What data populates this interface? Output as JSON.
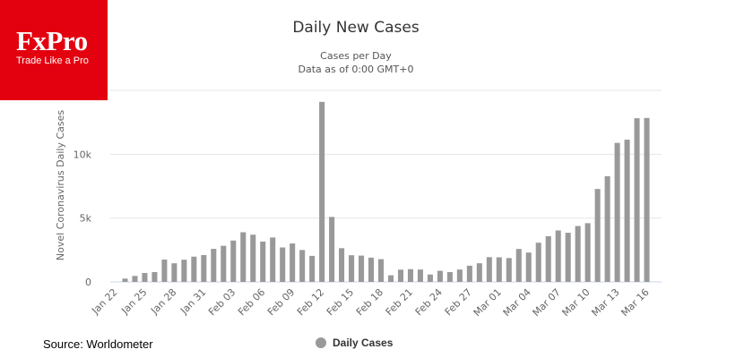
{
  "logo": {
    "name": "FxPro",
    "tagline": "Trade Like a Pro"
  },
  "source_note": "Source: Worldometer",
  "colors": {
    "brand": "#e3000f",
    "bar": "#999999",
    "grid": "#e6e6e6"
  },
  "chart_data": {
    "type": "bar",
    "title": "Daily New Cases",
    "subtitle": [
      "Cases per Day",
      "Data as of 0:00 GMT+0"
    ],
    "xlabel": "",
    "ylabel": "Novel Coronavirus Daily Cases",
    "ylim": [
      0,
      15000
    ],
    "y_ticks": [
      0,
      5000,
      10000
    ],
    "y_tick_labels": [
      "0",
      "5k",
      "10k"
    ],
    "grid": true,
    "legend": {
      "position": "bottom-center"
    },
    "categories": [
      "Jan 22",
      "Jan 23",
      "Jan 24",
      "Jan 25",
      "Jan 26",
      "Jan 27",
      "Jan 28",
      "Jan 29",
      "Jan 30",
      "Jan 31",
      "Feb 01",
      "Feb 02",
      "Feb 03",
      "Feb 04",
      "Feb 05",
      "Feb 06",
      "Feb 07",
      "Feb 08",
      "Feb 09",
      "Feb 10",
      "Feb 11",
      "Feb 12",
      "Feb 13",
      "Feb 14",
      "Feb 15",
      "Feb 16",
      "Feb 17",
      "Feb 18",
      "Feb 19",
      "Feb 20",
      "Feb 21",
      "Feb 22",
      "Feb 23",
      "Feb 24",
      "Feb 25",
      "Feb 26",
      "Feb 27",
      "Feb 28",
      "Feb 29",
      "Mar 01",
      "Mar 02",
      "Mar 03",
      "Mar 04",
      "Mar 05",
      "Mar 06",
      "Mar 07",
      "Mar 08",
      "Mar 09",
      "Mar 10",
      "Mar 11",
      "Mar 12",
      "Mar 13",
      "Mar 14",
      "Mar 15",
      "Mar 16",
      "Mar 17"
    ],
    "x_tick_labels": [
      "Jan 22",
      "Jan 25",
      "Jan 28",
      "Jan 31",
      "Feb 03",
      "Feb 06",
      "Feb 09",
      "Feb 12",
      "Feb 15",
      "Feb 18",
      "Feb 21",
      "Feb 24",
      "Feb 27",
      "Mar 01",
      "Mar 04",
      "Mar 07",
      "Mar 10",
      "Mar 13",
      "Mar 16"
    ],
    "series": [
      {
        "name": "Daily Cases",
        "color": "#999999",
        "values": [
          0,
          260,
          470,
          700,
          770,
          1750,
          1460,
          1740,
          1980,
          2100,
          2590,
          2830,
          3240,
          3890,
          3700,
          3160,
          3480,
          2700,
          3010,
          2500,
          2040,
          14100,
          5090,
          2640,
          2090,
          2060,
          1900,
          1780,
          520,
          960,
          1000,
          970,
          580,
          870,
          770,
          970,
          1270,
          1460,
          1940,
          1930,
          1870,
          2580,
          2300,
          3070,
          3580,
          4030,
          3850,
          4380,
          4600,
          7280,
          8280,
          10890,
          11140,
          12820,
          12840,
          0
        ]
      }
    ]
  }
}
